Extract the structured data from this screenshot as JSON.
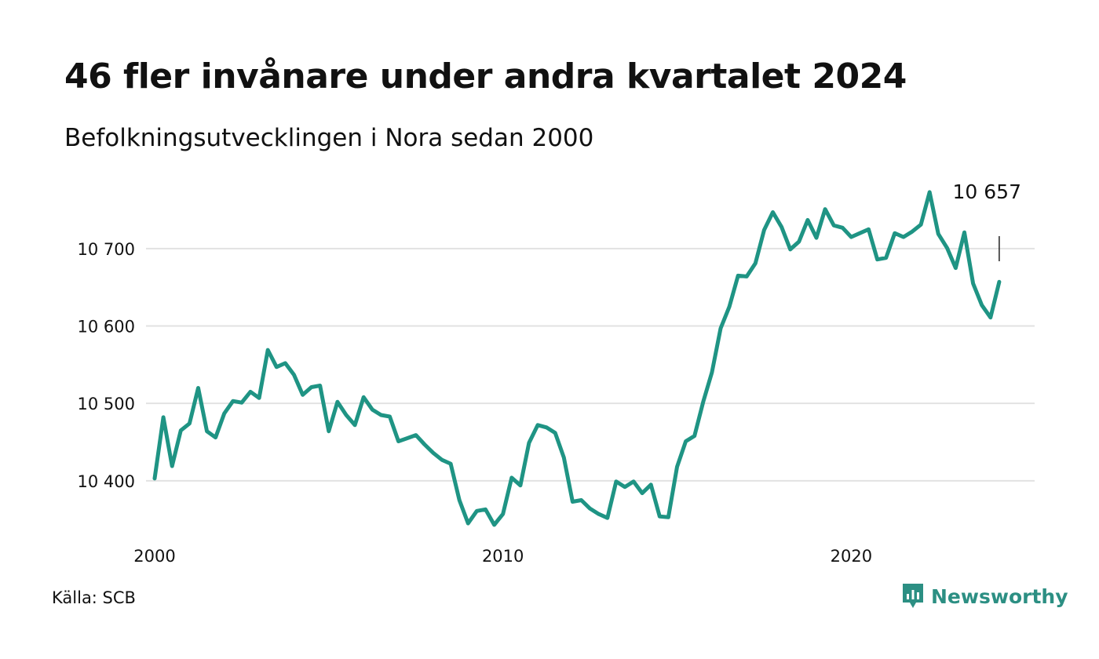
{
  "header": {
    "title": "46 fler invånare under andra kvartalet 2024",
    "subtitle": "Befolkningsutvecklingen i Nora sedan 2000"
  },
  "footer": {
    "source": "Källa: SCB",
    "brand": "Newsworthy",
    "brand_icon": "newsworthy-chart-bubble-icon"
  },
  "colors": {
    "line": "#1f9484",
    "grid": "#e2e2e2",
    "brand": "#2c8f83",
    "text": "#111111"
  },
  "chart_data": {
    "type": "line",
    "title": "46 fler invånare under andra kvartalet 2024",
    "subtitle": "Befolkningsutvecklingen i Nora sedan 2000",
    "xlabel": "",
    "ylabel": "",
    "x_tick_labels": [
      "2000",
      "2010",
      "2020"
    ],
    "x_tick_values": [
      2000,
      2010,
      2020
    ],
    "y_tick_labels": [
      "10 400",
      "10 500",
      "10 600",
      "10 700"
    ],
    "y_tick_values": [
      10400,
      10500,
      10600,
      10700
    ],
    "xlim": [
      2000,
      2024.5
    ],
    "ylim": [
      10340,
      10780
    ],
    "grid": true,
    "end_label": "10 657",
    "series": [
      {
        "points": [
          [
            2000.0,
            10403
          ],
          [
            2000.25,
            10482
          ],
          [
            2000.5,
            10419
          ],
          [
            2000.75,
            10465
          ],
          [
            2001.0,
            10474
          ],
          [
            2001.25,
            10520
          ],
          [
            2001.5,
            10464
          ],
          [
            2001.75,
            10456
          ],
          [
            2002.0,
            10487
          ],
          [
            2002.25,
            10503
          ],
          [
            2002.5,
            10501
          ],
          [
            2002.75,
            10515
          ],
          [
            2003.0,
            10507
          ],
          [
            2003.25,
            10569
          ],
          [
            2003.5,
            10547
          ],
          [
            2003.75,
            10552
          ],
          [
            2004.0,
            10537
          ],
          [
            2004.25,
            10511
          ],
          [
            2004.5,
            10521
          ],
          [
            2004.75,
            10523
          ],
          [
            2005.0,
            10464
          ],
          [
            2005.25,
            10502
          ],
          [
            2005.5,
            10485
          ],
          [
            2005.75,
            10472
          ],
          [
            2006.0,
            10508
          ],
          [
            2006.25,
            10492
          ],
          [
            2006.5,
            10485
          ],
          [
            2006.75,
            10483
          ],
          [
            2007.0,
            10451
          ],
          [
            2007.25,
            10455
          ],
          [
            2007.5,
            10459
          ],
          [
            2007.75,
            10447
          ],
          [
            2008.0,
            10436
          ],
          [
            2008.25,
            10427
          ],
          [
            2008.5,
            10422
          ],
          [
            2008.75,
            10375
          ],
          [
            2009.0,
            10345
          ],
          [
            2009.25,
            10361
          ],
          [
            2009.5,
            10363
          ],
          [
            2009.75,
            10343
          ],
          [
            2010.0,
            10357
          ],
          [
            2010.25,
            10404
          ],
          [
            2010.5,
            10394
          ],
          [
            2010.75,
            10449
          ],
          [
            2011.0,
            10472
          ],
          [
            2011.25,
            10469
          ],
          [
            2011.5,
            10462
          ],
          [
            2011.75,
            10430
          ],
          [
            2012.0,
            10373
          ],
          [
            2012.25,
            10375
          ],
          [
            2012.5,
            10364
          ],
          [
            2012.75,
            10357
          ],
          [
            2013.0,
            10352
          ],
          [
            2013.25,
            10399
          ],
          [
            2013.5,
            10392
          ],
          [
            2013.75,
            10399
          ],
          [
            2014.0,
            10384
          ],
          [
            2014.25,
            10395
          ],
          [
            2014.5,
            10354
          ],
          [
            2014.75,
            10353
          ],
          [
            2015.0,
            10418
          ],
          [
            2015.25,
            10451
          ],
          [
            2015.5,
            10458
          ],
          [
            2015.75,
            10502
          ],
          [
            2016.0,
            10540
          ],
          [
            2016.25,
            10597
          ],
          [
            2016.5,
            10625
          ],
          [
            2016.75,
            10665
          ],
          [
            2017.0,
            10664
          ],
          [
            2017.25,
            10681
          ],
          [
            2017.5,
            10724
          ],
          [
            2017.75,
            10747
          ],
          [
            2018.0,
            10728
          ],
          [
            2018.25,
            10699
          ],
          [
            2018.5,
            10709
          ],
          [
            2018.75,
            10737
          ],
          [
            2019.0,
            10714
          ],
          [
            2019.25,
            10751
          ],
          [
            2019.5,
            10730
          ],
          [
            2019.75,
            10727
          ],
          [
            2020.0,
            10715
          ],
          [
            2020.25,
            10720
          ],
          [
            2020.5,
            10725
          ],
          [
            2020.75,
            10686
          ],
          [
            2021.0,
            10688
          ],
          [
            2021.25,
            10720
          ],
          [
            2021.5,
            10715
          ],
          [
            2021.75,
            10722
          ],
          [
            2022.0,
            10731
          ],
          [
            2022.25,
            10773
          ],
          [
            2022.5,
            10719
          ],
          [
            2022.75,
            10701
          ],
          [
            2023.0,
            10675
          ],
          [
            2023.25,
            10721
          ],
          [
            2023.5,
            10655
          ],
          [
            2023.75,
            10627
          ],
          [
            2024.0,
            10611
          ],
          [
            2024.25,
            10657
          ]
        ]
      }
    ]
  }
}
